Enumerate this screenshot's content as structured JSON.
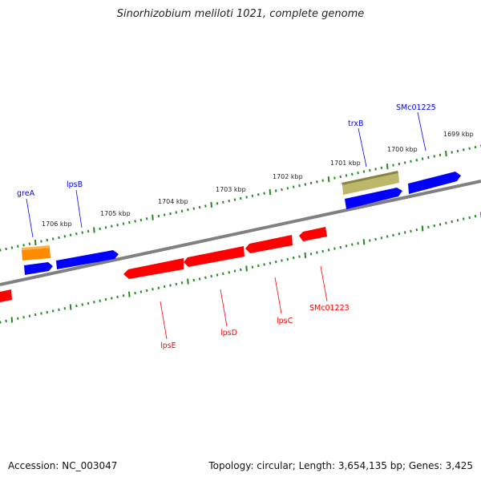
{
  "header": {
    "title": "Sinorhizobium meliloti 1021, complete genome"
  },
  "footer": {
    "accession": "Accession: NC_003047",
    "topology": "Topology: circular;",
    "length": "Length: 3,654,135 bp;",
    "genes": "Genes: 3,425"
  },
  "colors": {
    "forward_gene": "#0000ff",
    "reverse_gene": "#ff0000",
    "grea_gene": "#ff8c00",
    "trxb_gene": "#bdb76b",
    "backbone": "#808080",
    "tick": "#228b22"
  },
  "ruler": {
    "labels": [
      "1706 kbp",
      "1705 kbp",
      "1704 kbp",
      "1703 kbp",
      "1702 kbp",
      "1701 kbp",
      "1700 kbp",
      "1699 kbp"
    ]
  },
  "genes": {
    "greA": "greA",
    "lpsB": "lpsB",
    "trxB": "trxB",
    "SMc01225": "SMc01225",
    "lpsE": "lpsE",
    "lpsD": "lpsD",
    "lpsC": "lpsC",
    "SMc01223": "SMc01223"
  }
}
